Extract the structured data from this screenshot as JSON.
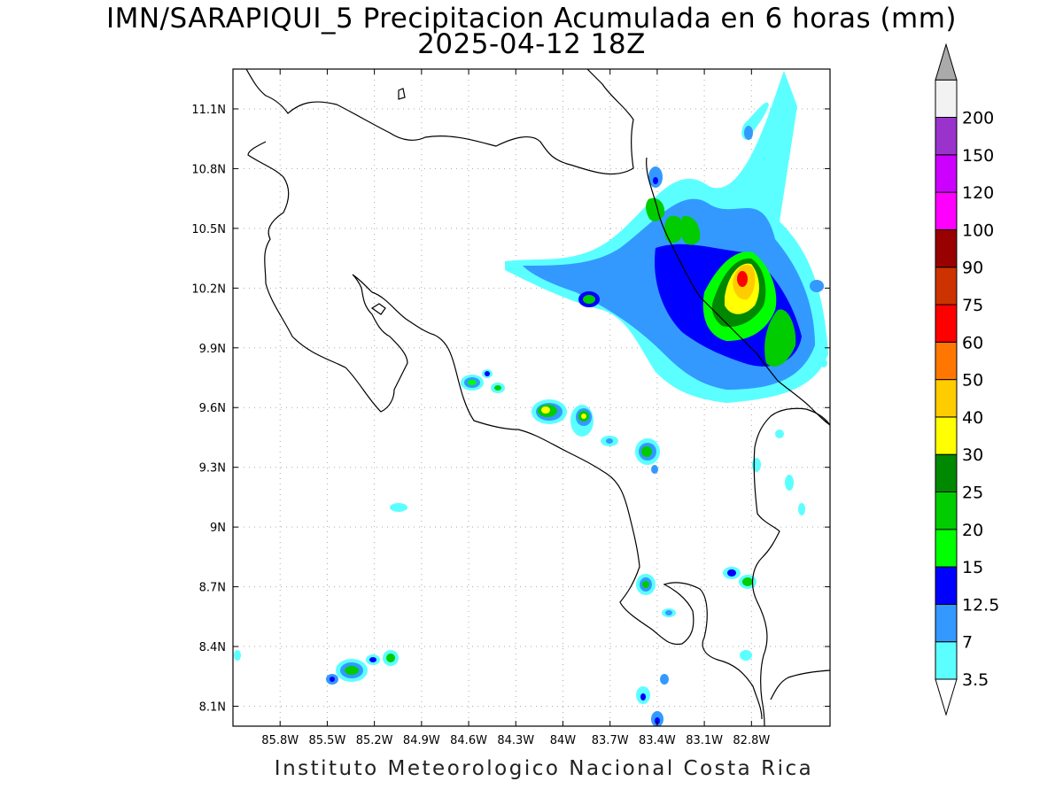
{
  "title": {
    "line1": "IMN/SARAPIQUI_5 Precipitacion Acumulada en 6 horas (mm)",
    "line2": "2025-04-12 18Z"
  },
  "footer": "Instituto Meteorologico Nacional Costa Rica",
  "map": {
    "lon_range": [
      -86.1,
      -82.3
    ],
    "lat_range": [
      8.0,
      11.3
    ],
    "lon_ticks": [
      {
        "value": -85.8,
        "label": "85.8W"
      },
      {
        "value": -85.5,
        "label": "85.5W"
      },
      {
        "value": -85.2,
        "label": "85.2W"
      },
      {
        "value": -84.9,
        "label": "84.9W"
      },
      {
        "value": -84.6,
        "label": "84.6W"
      },
      {
        "value": -84.3,
        "label": "84.3W"
      },
      {
        "value": -84.0,
        "label": "84W"
      },
      {
        "value": -83.7,
        "label": "83.7W"
      },
      {
        "value": -83.4,
        "label": "83.4W"
      },
      {
        "value": -83.1,
        "label": "83.1W"
      },
      {
        "value": -82.8,
        "label": "82.8W"
      }
    ],
    "lat_ticks": [
      {
        "value": 8.1,
        "label": "8.1N"
      },
      {
        "value": 8.4,
        "label": "8.4N"
      },
      {
        "value": 8.7,
        "label": "8.7N"
      },
      {
        "value": 9.0,
        "label": "9N"
      },
      {
        "value": 9.3,
        "label": "9.3N"
      },
      {
        "value": 9.6,
        "label": "9.6N"
      },
      {
        "value": 9.9,
        "label": "9.9N"
      },
      {
        "value": 10.2,
        "label": "10.2N"
      },
      {
        "value": 10.5,
        "label": "10.5N"
      },
      {
        "value": 10.8,
        "label": "10.8N"
      },
      {
        "value": 11.1,
        "label": "11.1N"
      }
    ],
    "grid": true,
    "precip_cells": [
      {
        "lon": -83.0,
        "lat": 10.2,
        "value": 40
      },
      {
        "lon": -82.98,
        "lat": 10.26,
        "value": 60
      },
      {
        "lon": -83.07,
        "lat": 10.1,
        "value": 25
      },
      {
        "lon": -82.85,
        "lat": 9.95,
        "value": 25
      },
      {
        "lon": -83.4,
        "lat": 10.5,
        "value": 20
      },
      {
        "lon": -83.55,
        "lat": 10.6,
        "value": 20
      },
      {
        "lon": -83.95,
        "lat": 10.16,
        "value": 20
      },
      {
        "lon": -84.12,
        "lat": 9.6,
        "value": 30
      },
      {
        "lon": -83.97,
        "lat": 9.56,
        "value": 30
      },
      {
        "lon": -83.57,
        "lat": 9.39,
        "value": 20
      },
      {
        "lon": -84.59,
        "lat": 9.73,
        "value": 20
      },
      {
        "lon": -84.45,
        "lat": 9.69,
        "value": 15
      },
      {
        "lon": -83.63,
        "lat": 8.72,
        "value": 20
      },
      {
        "lon": -82.95,
        "lat": 8.74,
        "value": 20
      },
      {
        "lon": -85.27,
        "lat": 8.29,
        "value": 20
      },
      {
        "lon": -85.07,
        "lat": 8.33,
        "value": 15
      },
      {
        "lon": -85.19,
        "lat": 8.33,
        "value": 12.5
      },
      {
        "lon": -85.4,
        "lat": 8.24,
        "value": 12.5
      }
    ]
  },
  "colorbar": {
    "levels": [
      "3.5",
      "7",
      "12.5",
      "15",
      "20",
      "25",
      "30",
      "40",
      "50",
      "60",
      "75",
      "90",
      "100",
      "120",
      "150",
      "200"
    ],
    "colors": [
      "#5cffff",
      "#3399ff",
      "#0000ff",
      "#00ff00",
      "#00cc00",
      "#008800",
      "#ffff00",
      "#ffcc00",
      "#ff7700",
      "#ff0000",
      "#cc3300",
      "#990000",
      "#ff00ff",
      "#cc00ff",
      "#9933cc",
      "#f2f2f2"
    ],
    "low_triangle_color": "#ffffff",
    "high_triangle_color": "#aaaaaa"
  }
}
